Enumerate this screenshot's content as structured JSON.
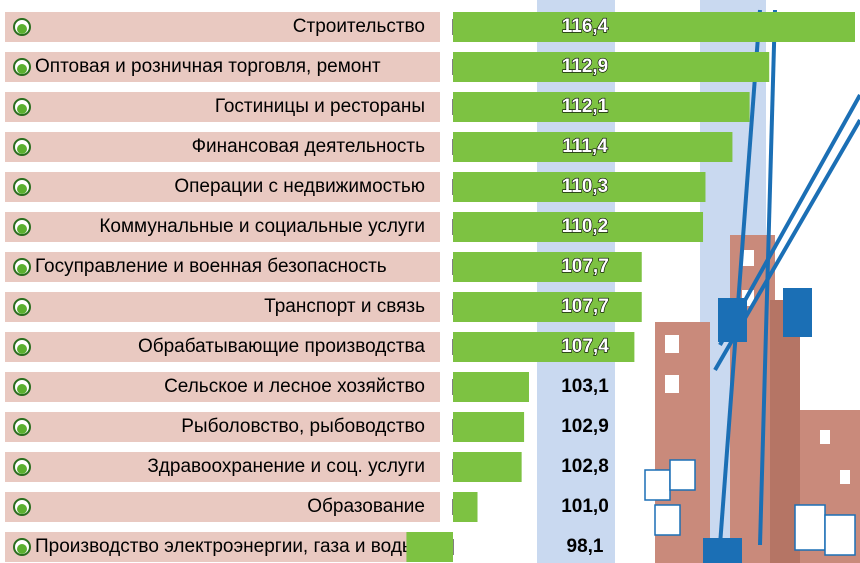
{
  "chart_data": {
    "type": "bar",
    "orientation": "horizontal",
    "categories": [
      "Строительство",
      "Оптовая и розничная торговля, ремонт",
      "Гостиницы и рестораны",
      "Финансовая деятельность",
      "Операции с недвижимостью",
      "Коммунальные и социальные услуги",
      "Госуправление и военная безопасность",
      "Транспорт и связь",
      "Обрабатывающие производства",
      "Сельское и лесное хозяйство",
      "Рыболовство, рыбоводство",
      "Здравоохранение и соц. услуги",
      "Образование",
      "Производство электроэнергии, газа и воды"
    ],
    "values": [
      116.4,
      112.9,
      112.1,
      111.4,
      110.3,
      110.2,
      107.7,
      107.7,
      107.4,
      103.1,
      102.9,
      102.8,
      101.0,
      98.1
    ],
    "value_labels": [
      "116,4",
      "112,9",
      "112,1",
      "111,4",
      "110,3",
      "110,2",
      "107,7",
      "107,7",
      "107,4",
      "103,1",
      "102,9",
      "102,8",
      "101,0",
      "98,1"
    ],
    "color": "#7dc242",
    "xlim": [
      100,
      116.4
    ]
  }
}
